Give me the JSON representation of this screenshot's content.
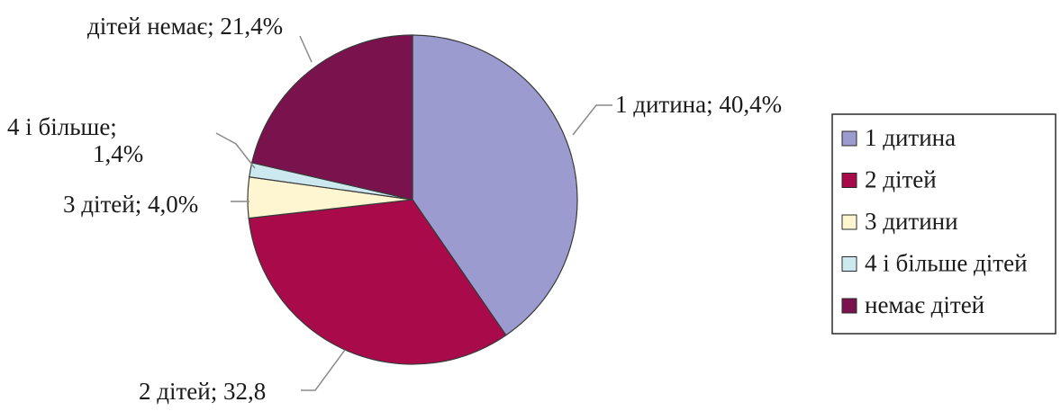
{
  "chart_data": {
    "type": "pie",
    "title": "",
    "slices": [
      {
        "legend": "1 дитина",
        "label": "1 дитина; 40,4%",
        "value": 40.4,
        "color": "#9b9bcf"
      },
      {
        "legend": "2 дітей",
        "label": "2 дітей; 32,8",
        "value": 32.8,
        "color": "#a80a4a"
      },
      {
        "legend": "3 дитини",
        "label": "3 дітей; 4,0%",
        "value": 4.0,
        "color": "#fdf6d0"
      },
      {
        "legend": "4 і більше дітей",
        "label": "4 і більше;\n1,4%",
        "value": 1.4,
        "color": "#cde9f0"
      },
      {
        "legend": "немає дітей",
        "label": "дітей немає; 21,4%",
        "value": 21.4,
        "color": "#7a124e"
      }
    ],
    "legend_position": "right"
  }
}
